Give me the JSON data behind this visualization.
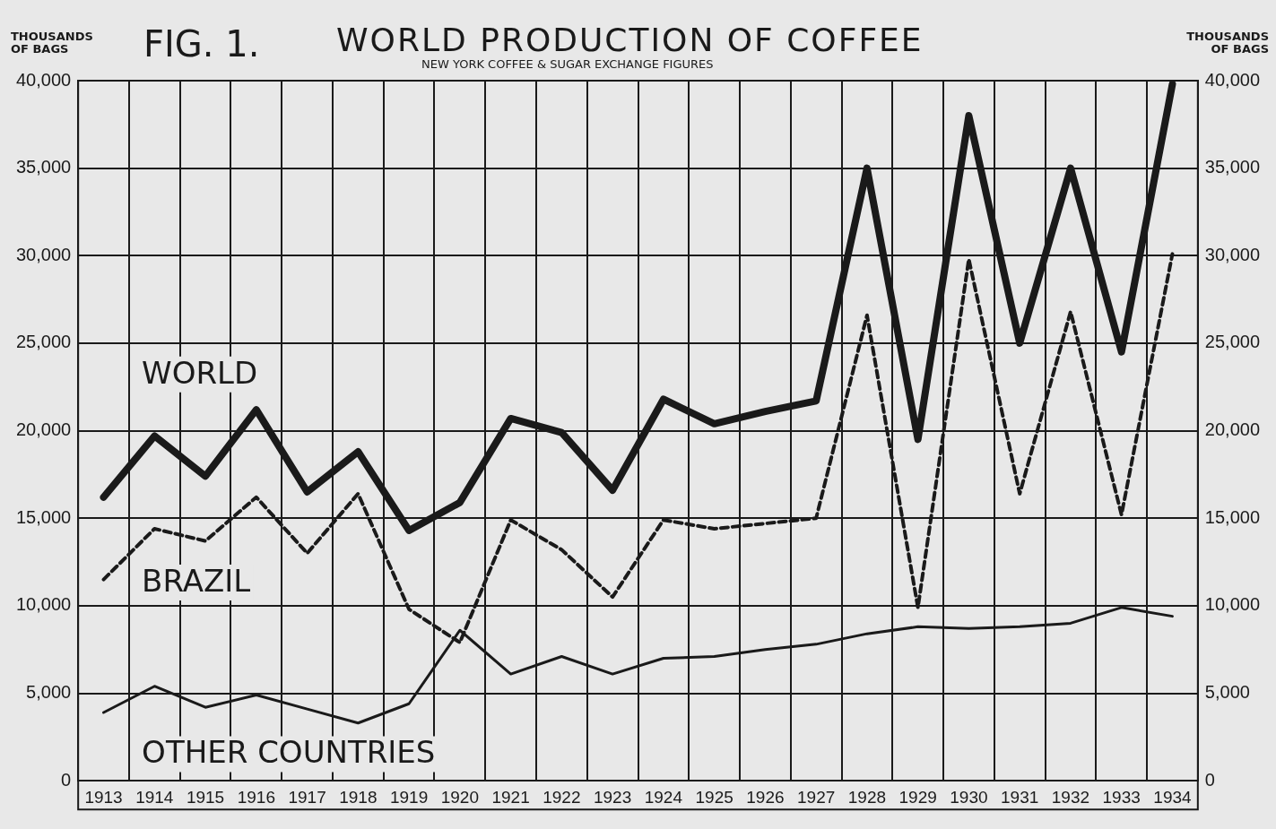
{
  "chart_data": {
    "type": "line",
    "title": "WORLD PRODUCTION OF COFFEE",
    "subtitle": "NEW YORK COFFEE & SUGAR EXCHANGE FIGURES",
    "annotations": [
      "FIG. 1."
    ],
    "ylabel": "THOUSANDS OF BAGS",
    "y2label": "THOUSANDS OF BAGS",
    "categories": [
      "1913",
      "1914",
      "1915",
      "1916",
      "1917",
      "1918",
      "1919",
      "1920",
      "1921",
      "1922",
      "1923",
      "1924",
      "1925",
      "1926",
      "1927",
      "1928",
      "1929",
      "1930",
      "1931",
      "1932",
      "1933",
      "1934"
    ],
    "series": [
      {
        "name": "WORLD",
        "color": "#1a1a1a",
        "line_style": "solid",
        "values": [
          16200,
          19700,
          17400,
          21200,
          16500,
          18800,
          14300,
          15900,
          20700,
          19900,
          16600,
          21800,
          20400,
          21100,
          21700,
          35000,
          19500,
          38000,
          25000,
          35000,
          24500,
          39800
        ]
      },
      {
        "name": "BRAZIL",
        "color": "#1a1a1a",
        "line_style": "dashed",
        "values": [
          11500,
          14400,
          13700,
          16200,
          13000,
          16400,
          9800,
          7900,
          14900,
          13200,
          10500,
          14900,
          14400,
          14700,
          15000,
          26600,
          9900,
          29800,
          16400,
          26800,
          15200,
          30100
        ]
      },
      {
        "name": "OTHER COUNTRIES",
        "color": "#1a1a1a",
        "line_style": "solid",
        "values": [
          3900,
          5400,
          4200,
          4900,
          4100,
          3300,
          4400,
          8600,
          6100,
          7100,
          6100,
          7000,
          7100,
          7500,
          7800,
          8400,
          8800,
          8700,
          8800,
          9000,
          9900,
          9400
        ]
      }
    ],
    "ylim": [
      0,
      40000
    ],
    "yticks": [
      0,
      {
        "value": 5000,
        "label": "5,000"
      },
      {
        "value": 10000,
        "label": "10,000"
      },
      {
        "value": 15000,
        "label": "15,000"
      },
      {
        "value": 20000,
        "label": "20,000"
      },
      {
        "value": 25000,
        "label": "25,000"
      },
      {
        "value": 30000,
        "label": "30,000"
      },
      {
        "value": 35000,
        "label": "35,000"
      },
      {
        "value": 40000,
        "label": "40,000"
      }
    ],
    "y2lim": [
      0,
      40000
    ],
    "y2ticks": [
      0,
      {
        "value": 5000,
        "label": "5,000"
      },
      {
        "value": 10000,
        "label": "10,000"
      },
      {
        "value": 15000,
        "label": "15,000"
      },
      {
        "value": 20000,
        "label": "20,000"
      },
      {
        "value": 25000,
        "label": "25,000"
      },
      {
        "value": 30000,
        "label": "30,000"
      },
      {
        "value": 35000,
        "label": "35,000"
      },
      {
        "value": 40000,
        "label": "40,000"
      }
    ],
    "grid": true,
    "legend": false,
    "marker": "none"
  }
}
